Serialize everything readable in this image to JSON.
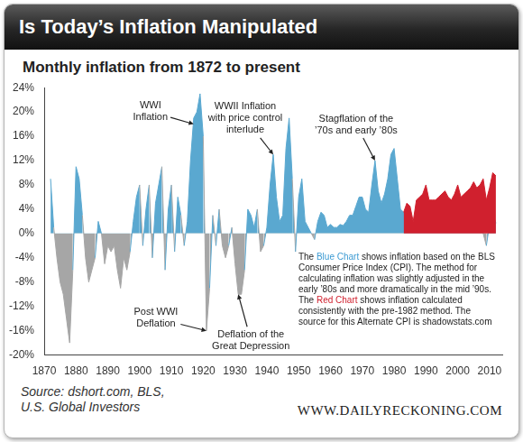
{
  "chart_data": {
    "type": "area",
    "title": "Is Today’s Inflation Manipulated",
    "subtitle": "Monthly inflation from 1872 to present",
    "source": "Source: dshort.com, BLS,\nU.S. Global Investors",
    "website": "WWW.DAILYRECKONING.COM",
    "note": [
      {
        "text": "The "
      },
      {
        "text": "Blue Chart",
        "color": "#3d9bd3"
      },
      {
        "text": " shows inflation based on the BLS Consumer Price Index (CPI). The method for calculating inflation was slightly adjusted in the early ’80s and more dramatically in the mid ’90s. The "
      },
      {
        "text": "Red Chart",
        "color": "#d0202e"
      },
      {
        "text": " shows inflation calculated consistently with the pre-1982 method. The source for this Alternate CPI is shadowstats.com"
      }
    ],
    "annotations": [
      {
        "text": "WWI\nInflation",
        "x": 1917,
        "y": 18
      },
      {
        "text": "WWII Inflation\nwith price control\ninterlude",
        "x": 1942,
        "y": 13
      },
      {
        "text": "Stagflation of the\n’70s and early ’80s",
        "x": 1974,
        "y": 12
      },
      {
        "text": "Post WWI\nDeflation",
        "x": 1921,
        "y": -16
      },
      {
        "text": "Deflation of the\nGreat Depression",
        "x": 1931,
        "y": -10
      }
    ],
    "x": [
      1872,
      1873,
      1874,
      1875,
      1876,
      1877,
      1878,
      1879,
      1880,
      1881,
      1882,
      1883,
      1884,
      1885,
      1886,
      1887,
      1888,
      1889,
      1890,
      1891,
      1892,
      1893,
      1894,
      1895,
      1896,
      1897,
      1898,
      1899,
      1900,
      1901,
      1902,
      1903,
      1904,
      1905,
      1906,
      1907,
      1908,
      1909,
      1910,
      1911,
      1912,
      1913,
      1914,
      1915,
      1916,
      1917,
      1918,
      1919,
      1920,
      1921,
      1922,
      1923,
      1924,
      1925,
      1926,
      1927,
      1928,
      1929,
      1930,
      1931,
      1932,
      1933,
      1934,
      1935,
      1936,
      1937,
      1938,
      1939,
      1940,
      1941,
      1942,
      1943,
      1944,
      1945,
      1946,
      1947,
      1948,
      1949,
      1950,
      1951,
      1952,
      1953,
      1954,
      1955,
      1956,
      1957,
      1958,
      1959,
      1960,
      1961,
      1962,
      1963,
      1964,
      1965,
      1966,
      1967,
      1968,
      1969,
      1970,
      1971,
      1972,
      1973,
      1974,
      1975,
      1976,
      1977,
      1978,
      1979,
      1980,
      1981,
      1982,
      1983,
      1984,
      1985,
      1986,
      1987,
      1988,
      1989,
      1990,
      1991,
      1992,
      1993,
      1994,
      1995,
      1996,
      1997,
      1998,
      1999,
      2000,
      2001,
      2002,
      2003,
      2004,
      2005,
      2006,
      2007,
      2008,
      2009,
      2010,
      2011,
      2012
    ],
    "series": [
      {
        "values": [
          9,
          1,
          -4,
          -8,
          -10,
          -14,
          -18,
          -6,
          11,
          9,
          3,
          -4,
          -8,
          -6,
          -4,
          2,
          0,
          -5,
          -2,
          -3,
          -2,
          -6,
          -9,
          -4,
          -6,
          -3,
          2,
          6,
          8,
          -2,
          4,
          8,
          -4,
          5,
          8,
          11,
          -6,
          4,
          8,
          -3,
          6,
          3,
          -2,
          2,
          12,
          19,
          20,
          23,
          16,
          -16,
          -9,
          3,
          -2,
          4,
          -2,
          -4,
          -2,
          1,
          -5,
          -10,
          -10,
          -6,
          4,
          3,
          1,
          4,
          -3,
          -2,
          1,
          8,
          13,
          6,
          2,
          3,
          14,
          19,
          9,
          -3,
          6,
          9,
          2,
          1,
          0,
          -1,
          2,
          3.5,
          3,
          1,
          1.5,
          1,
          1,
          1.5,
          1.3,
          2,
          3,
          3,
          4.5,
          6,
          6,
          4,
          3.5,
          8,
          12,
          7,
          5,
          6.5,
          9,
          13,
          14,
          9,
          4,
          3.5,
          4,
          3.5,
          1,
          4,
          4,
          4.5,
          6,
          3,
          3,
          2.7,
          2.7,
          2.5,
          3,
          2,
          1.6,
          2.5,
          3.5,
          1.5,
          2.4,
          2,
          3,
          4,
          2.5,
          4,
          0,
          -2,
          1.5,
          3.5,
          1.7
        ],
        "colors": [
          "#5aa8d0",
          "#5aa8d0",
          "#a6a6a6",
          "#a6a6a6",
          "#a6a6a6",
          "#a6a6a6",
          "#a6a6a6",
          "#a6a6a6",
          "#5aa8d0",
          "#5aa8d0",
          "#5aa8d0",
          "#a6a6a6",
          "#a6a6a6",
          "#a6a6a6",
          "#a6a6a6",
          "#5aa8d0",
          "#5aa8d0",
          "#a6a6a6",
          "#a6a6a6",
          "#a6a6a6",
          "#a6a6a6",
          "#a6a6a6",
          "#a6a6a6",
          "#a6a6a6",
          "#a6a6a6",
          "#a6a6a6",
          "#5aa8d0",
          "#5aa8d0",
          "#5aa8d0",
          "#a6a6a6",
          "#5aa8d0",
          "#5aa8d0",
          "#a6a6a6",
          "#5aa8d0",
          "#5aa8d0",
          "#5aa8d0",
          "#a6a6a6",
          "#5aa8d0",
          "#5aa8d0",
          "#a6a6a6",
          "#5aa8d0",
          "#5aa8d0",
          "#a6a6a6",
          "#5aa8d0",
          "#5aa8d0",
          "#5aa8d0",
          "#5aa8d0",
          "#5aa8d0",
          "#5aa8d0",
          "#a6a6a6",
          "#a6a6a6",
          "#5aa8d0",
          "#a6a6a6",
          "#5aa8d0",
          "#a6a6a6",
          "#a6a6a6",
          "#a6a6a6",
          "#5aa8d0",
          "#a6a6a6",
          "#a6a6a6",
          "#a6a6a6",
          "#a6a6a6",
          "#5aa8d0",
          "#5aa8d0",
          "#5aa8d0",
          "#5aa8d0",
          "#a6a6a6",
          "#a6a6a6",
          "#5aa8d0",
          "#5aa8d0",
          "#5aa8d0",
          "#5aa8d0",
          "#5aa8d0",
          "#5aa8d0",
          "#5aa8d0",
          "#5aa8d0",
          "#5aa8d0",
          "#a6a6a6",
          "#5aa8d0",
          "#5aa8d0",
          "#5aa8d0",
          "#5aa8d0",
          "#5aa8d0",
          "#a6a6a6",
          "#5aa8d0",
          "#5aa8d0",
          "#5aa8d0",
          "#5aa8d0",
          "#5aa8d0",
          "#5aa8d0",
          "#5aa8d0",
          "#5aa8d0",
          "#5aa8d0",
          "#5aa8d0",
          "#5aa8d0",
          "#5aa8d0",
          "#5aa8d0",
          "#5aa8d0",
          "#5aa8d0",
          "#5aa8d0",
          "#5aa8d0",
          "#5aa8d0",
          "#5aa8d0",
          "#5aa8d0",
          "#5aa8d0",
          "#5aa8d0",
          "#5aa8d0",
          "#5aa8d0",
          "#5aa8d0",
          "#5aa8d0",
          "#5aa8d0",
          "#5aa8d0",
          "#5aa8d0",
          "#5aa8d0",
          "#5aa8d0",
          "#5aa8d0",
          "#5aa8d0",
          "#5aa8d0",
          "#5aa8d0",
          "#5aa8d0",
          "#5aa8d0",
          "#5aa8d0",
          "#5aa8d0",
          "#5aa8d0",
          "#5aa8d0",
          "#5aa8d0",
          "#5aa8d0",
          "#5aa8d0",
          "#5aa8d0",
          "#5aa8d0",
          "#5aa8d0",
          "#5aa8d0",
          "#5aa8d0",
          "#5aa8d0",
          "#5aa8d0",
          "#5aa8d0",
          "#5aa8d0",
          "#a6a6a6",
          "#5aa8d0",
          "#5aa8d0",
          "#5aa8d0"
        ]
      },
      {
        "color": "#d0202e",
        "values": [
          null,
          null,
          null,
          null,
          null,
          null,
          null,
          null,
          null,
          null,
          null,
          null,
          null,
          null,
          null,
          null,
          null,
          null,
          null,
          null,
          null,
          null,
          null,
          null,
          null,
          null,
          null,
          null,
          null,
          null,
          null,
          null,
          null,
          null,
          null,
          null,
          null,
          null,
          null,
          null,
          null,
          null,
          null,
          null,
          null,
          null,
          null,
          null,
          null,
          null,
          null,
          null,
          null,
          null,
          null,
          null,
          null,
          null,
          null,
          null,
          null,
          null,
          null,
          null,
          null,
          null,
          null,
          null,
          null,
          null,
          null,
          null,
          null,
          null,
          null,
          null,
          null,
          null,
          null,
          null,
          null,
          null,
          null,
          null,
          null,
          null,
          null,
          null,
          null,
          null,
          null,
          null,
          null,
          null,
          null,
          null,
          null,
          null,
          null,
          null,
          null,
          null,
          null,
          null,
          null,
          null,
          null,
          null,
          null,
          null,
          null,
          3.5,
          5,
          4.5,
          2,
          5.5,
          6,
          6.5,
          8,
          5.5,
          5.5,
          5.5,
          6,
          6.5,
          7,
          6,
          5.5,
          6.5,
          8,
          6,
          6.5,
          7,
          7.5,
          8.5,
          7.5,
          8,
          9,
          5.5,
          7.5,
          10,
          9.5
        ]
      }
    ],
    "xlim": [
      1870,
      2014
    ],
    "xticks": [
      1870,
      1880,
      1890,
      1900,
      1910,
      1920,
      1930,
      1940,
      1950,
      1960,
      1970,
      1980,
      1990,
      2000,
      2010
    ],
    "ylim": [
      -20,
      24
    ],
    "yticks": [
      {
        "value": -20,
        "label": "-20%"
      },
      {
        "value": -16,
        "label": "-16%"
      },
      {
        "value": -12,
        "label": "-12%"
      },
      {
        "value": -8,
        "label": "-8%"
      },
      {
        "value": -4,
        "label": "-4%"
      },
      {
        "value": 0,
        "label": "0%"
      },
      {
        "value": 4,
        "label": "4%"
      },
      {
        "value": 8,
        "label": "8%"
      },
      {
        "value": 12,
        "label": "12%"
      },
      {
        "value": 16,
        "label": "16%"
      },
      {
        "value": 20,
        "label": "20%"
      },
      {
        "value": 24,
        "label": "24%"
      }
    ],
    "grid": false
  }
}
